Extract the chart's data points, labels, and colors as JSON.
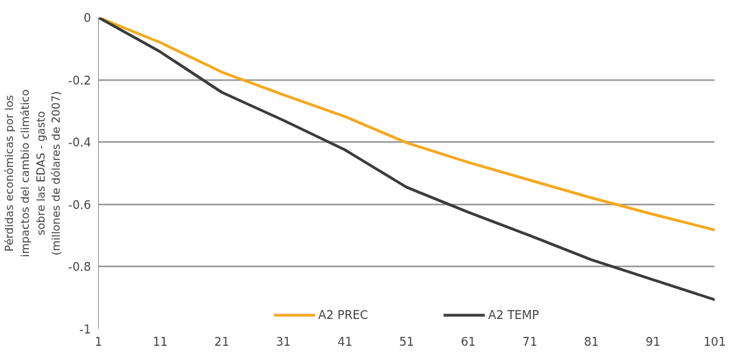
{
  "chart_data": {
    "type": "line",
    "ylabel": "Pérdidas económicas por los\nimpactos del cambio climático\nsobre las EDAS - gasto\n(millones de dólares de 2007)",
    "x": [
      1,
      11,
      21,
      31,
      41,
      51,
      61,
      71,
      81,
      91,
      101
    ],
    "series": [
      {
        "name": "A2 PREC",
        "color": "#f5a81c",
        "values": [
          0,
          -0.08,
          -0.175,
          -0.248,
          -0.318,
          -0.402,
          -0.465,
          -0.522,
          -0.579,
          -0.632,
          -0.682
        ]
      },
      {
        "name": "A2 TEMP",
        "color": "#3a3a3a",
        "values": [
          0,
          -0.11,
          -0.24,
          -0.33,
          -0.425,
          -0.545,
          -0.625,
          -0.7,
          -0.778,
          -0.842,
          -0.906
        ]
      }
    ],
    "xlim": [
      1,
      101
    ],
    "xticks": [
      1,
      11,
      21,
      31,
      41,
      51,
      61,
      71,
      81,
      91,
      101
    ],
    "ylim": [
      -1,
      0
    ],
    "yticks": [
      -1,
      -0.8,
      -0.6,
      -0.4,
      -0.2,
      0
    ],
    "grid": "y",
    "legend": "bottom",
    "marker": "none",
    "line_style": "solid"
  }
}
